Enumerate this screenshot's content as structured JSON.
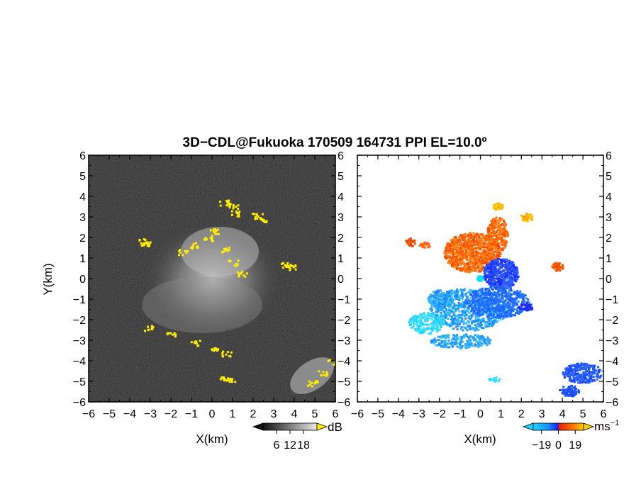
{
  "chart_data": {
    "title": "3D−CDL@Fukuoka 170509 164731 PPI EL=10.0º",
    "panels": [
      {
        "name": "reflectivity",
        "type": "heatmap",
        "xlabel": "X(km)",
        "ylabel": "Y(km)",
        "xlim": [
          -6,
          6
        ],
        "ylim": [
          -6,
          6
        ],
        "x_ticks": [
          "−6",
          "−5",
          "−4",
          "−3",
          "−2",
          "−1",
          "0",
          "1",
          "2",
          "3",
          "4",
          "5",
          "6"
        ],
        "y_ticks": [
          "6",
          "5",
          "4",
          "3",
          "2",
          "1",
          "0",
          "−1",
          "−2",
          "−3",
          "−4",
          "−5",
          "−6"
        ],
        "background_color": "#2a2a2a",
        "highlight_color": "#ffee00",
        "colorbar": {
          "ticks": [
            "6",
            "12",
            "18"
          ],
          "unit": "dB"
        }
      },
      {
        "name": "doppler-velocity",
        "type": "heatmap",
        "xlabel": "X(km)",
        "xlim": [
          -6,
          6
        ],
        "ylim": [
          -6,
          6
        ],
        "x_ticks": [
          "−6",
          "−5",
          "−4",
          "−3",
          "−2",
          "−1",
          "0",
          "1",
          "2",
          "3",
          "4",
          "5",
          "6"
        ],
        "y_ticks": [
          "6",
          "5",
          "4",
          "3",
          "2",
          "1",
          "0",
          "−1",
          "−2",
          "−3",
          "−4",
          "−5",
          "−6"
        ],
        "colorbar": {
          "ticks": [
            "−19",
            "0",
            "19"
          ],
          "unit": "ms",
          "unit_exponent": "−1"
        }
      }
    ]
  }
}
